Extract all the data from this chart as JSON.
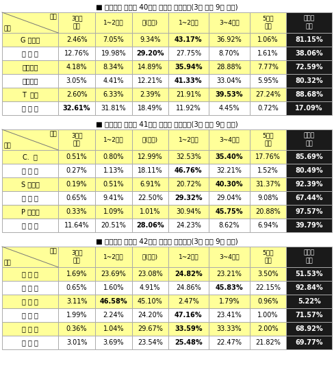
{
  "title1": "■ 골프토토 스페셔 40회차 투표를 중간집계(3일 오전 9시 현재)",
  "title2": "■ 골프토토 스페셔 41회차 투표를 중간집계(3일 오전 9시 현재)",
  "title3": "■ 골프토토 스페셔 42회차 투표를 중간집계(3일 오전 9시 현재)",
  "col_header_top": "구간",
  "col_header_bot": "선수",
  "col_headers": [
    "3오버\n이상",
    "1~2오버",
    "이(이븐)",
    "1~2인더",
    "3~4인더",
    "5인더\n이하",
    "언더파\n예상"
  ],
  "table1": [
    [
      "G 오길비",
      "2.46%",
      "7.05%",
      "9.34%",
      "43.17%",
      "36.92%",
      "1.06%",
      "81.15%"
    ],
    [
      "잭 존 슨",
      "12.76%",
      "19.98%",
      "29.20%",
      "27.75%",
      "8.70%",
      "1.61%",
      "38.06%"
    ],
    [
      "선오헤어",
      "4.18%",
      "8.34%",
      "14.89%",
      "35.94%",
      "28.88%",
      "7.77%",
      "72.59%"
    ],
    [
      "케니페리",
      "3.05%",
      "4.41%",
      "12.21%",
      "41.33%",
      "33.04%",
      "5.95%",
      "80.32%"
    ],
    [
      "T  우즈",
      "2.60%",
      "6.33%",
      "2.39%",
      "21.91%",
      "39.53%",
      "27.24%",
      "88.68%"
    ],
    [
      "양 용 은",
      "32.61%",
      "31.81%",
      "18.49%",
      "11.92%",
      "4.45%",
      "0.72%",
      "17.09%"
    ]
  ],
  "table2": [
    [
      "C.  커",
      "0.51%",
      "0.80%",
      "12.99%",
      "32.53%",
      "35.40%",
      "17.76%",
      "85.69%"
    ],
    [
      "아 니 행",
      "0.27%",
      "1.13%",
      "18.11%",
      "46.76%",
      "32.21%",
      "1.52%",
      "80.49%"
    ],
    [
      "S 페테르",
      "0.19%",
      "0.51%",
      "6.91%",
      "20.72%",
      "40.30%",
      "31.37%",
      "92.39%"
    ],
    [
      "신 지 애",
      "0.65%",
      "9.41%",
      "22.50%",
      "29.32%",
      "29.04%",
      "9.08%",
      "67.44%"
    ],
    [
      "P 크리머",
      "0.33%",
      "1.09%",
      "1.01%",
      "30.94%",
      "45.75%",
      "20.88%",
      "97.57%"
    ],
    [
      "오 지 영",
      "11.64%",
      "20.51%",
      "28.06%",
      "24.23%",
      "8.62%",
      "6.94%",
      "39.79%"
    ]
  ],
  "table3": [
    [
      "서 희 경",
      "1.69%",
      "23.69%",
      "23.08%",
      "24.82%",
      "23.21%",
      "3.50%",
      "51.53%"
    ],
    [
      "유 소 연",
      "0.65%",
      "1.60%",
      "4.91%",
      "24.86%",
      "45.83%",
      "22.15%",
      "92.84%"
    ],
    [
      "최 혜 롱",
      "3.11%",
      "46.58%",
      "45.10%",
      "2.47%",
      "1.79%",
      "0.96%",
      "5.22%"
    ],
    [
      "김 보 경",
      "1.99%",
      "2.24%",
      "24.20%",
      "47.16%",
      "23.41%",
      "1.00%",
      "71.57%"
    ],
    [
      "안 선 주",
      "0.36%",
      "1.04%",
      "29.67%",
      "33.59%",
      "33.33%",
      "2.00%",
      "68.92%"
    ],
    [
      "정 혜 진",
      "3.01%",
      "3.69%",
      "23.54%",
      "25.48%",
      "22.47%",
      "21.82%",
      "69.77%"
    ]
  ],
  "bold_cells": {
    "table1": [
      [
        0,
        4
      ],
      [
        1,
        3
      ],
      [
        2,
        4
      ],
      [
        3,
        4
      ],
      [
        4,
        5
      ],
      [
        5,
        1
      ]
    ],
    "table2": [
      [
        0,
        5
      ],
      [
        1,
        4
      ],
      [
        2,
        5
      ],
      [
        3,
        4
      ],
      [
        4,
        5
      ],
      [
        5,
        3
      ]
    ],
    "table3": [
      [
        0,
        4
      ],
      [
        1,
        5
      ],
      [
        2,
        2
      ],
      [
        3,
        4
      ],
      [
        4,
        4
      ],
      [
        5,
        4
      ]
    ]
  },
  "bg_yellow": "#FFFF99",
  "bg_white": "#FFFFFF",
  "bg_black": "#1a1a1a",
  "border_color": "#aaaaaa",
  "title_color": "#000000"
}
